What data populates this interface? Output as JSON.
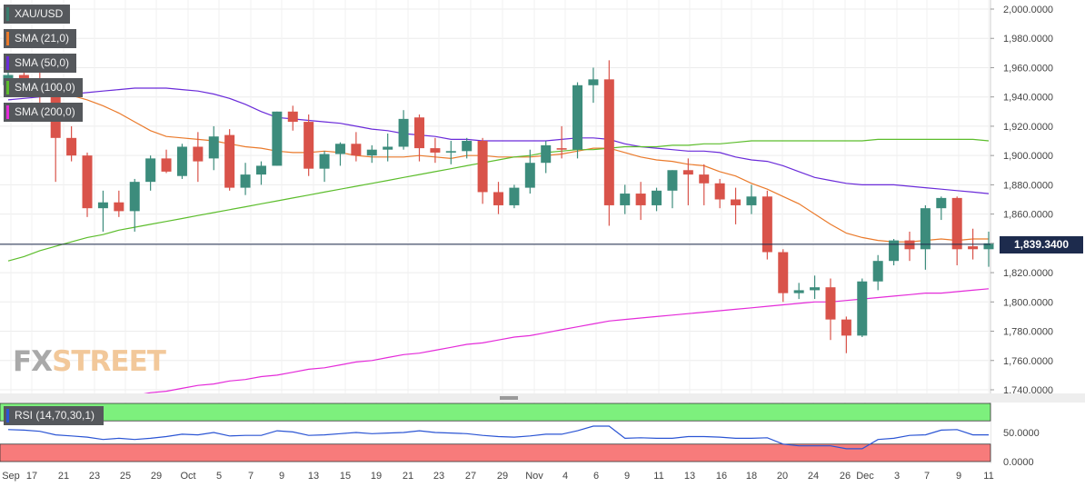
{
  "chart_data": [
    {
      "type": "candlestick",
      "symbol": "XAU/USD",
      "last_price_label": "1,839.3400",
      "last_price": 1839.34,
      "ylim": [
        1735,
        2005
      ],
      "y_ticks": [
        2000,
        1980,
        1960,
        1940,
        1920,
        1900,
        1880,
        1860,
        1840,
        1820,
        1800,
        1780,
        1760,
        1740
      ],
      "y_tick_labels": [
        "2,000.0000",
        "1,980.0000",
        "1,960.0000",
        "1,940.0000",
        "1,920.0000",
        "1,900.0000",
        "1,880.0000",
        "1,860.0000",
        "1,840.0000",
        "1,820.0000",
        "1,800.0000",
        "1,780.0000",
        "1,760.0000",
        "1,740.0000"
      ],
      "x_tick_labels": [
        "Sep",
        "17",
        "21",
        "23",
        "25",
        "29",
        "Oct",
        "5",
        "7",
        "9",
        "13",
        "15",
        "19",
        "21",
        "23",
        "27",
        "29",
        "Nov",
        "4",
        "6",
        "9",
        "11",
        "13",
        "16",
        "18",
        "20",
        "24",
        "26",
        "Dec",
        "3",
        "7",
        "9",
        "11"
      ],
      "grid": true,
      "legend": [
        "XAU/USD",
        "SMA (21,0)",
        "SMA (50,0)",
        "SMA (100,0)",
        "SMA (200,0)"
      ],
      "legend_colors": [
        "#3a7d6e",
        "#ea7a2b",
        "#6a2bd9",
        "#5cbd2c",
        "#e42bd9"
      ],
      "up_color": "#3c8c7c",
      "down_color": "#d9534a",
      "candles": [
        {
          "o": 1948,
          "h": 1960,
          "l": 1940,
          "c": 1955
        },
        {
          "o": 1955,
          "h": 1962,
          "l": 1942,
          "c": 1945
        },
        {
          "o": 1948,
          "h": 1958,
          "l": 1935,
          "c": 1942
        },
        {
          "o": 1940,
          "h": 1946,
          "l": 1882,
          "c": 1912
        },
        {
          "o": 1912,
          "h": 1920,
          "l": 1896,
          "c": 1900
        },
        {
          "o": 1900,
          "h": 1902,
          "l": 1858,
          "c": 1864
        },
        {
          "o": 1864,
          "h": 1876,
          "l": 1848,
          "c": 1868
        },
        {
          "o": 1868,
          "h": 1876,
          "l": 1858,
          "c": 1862
        },
        {
          "o": 1862,
          "h": 1884,
          "l": 1848,
          "c": 1882
        },
        {
          "o": 1882,
          "h": 1900,
          "l": 1876,
          "c": 1898
        },
        {
          "o": 1898,
          "h": 1904,
          "l": 1888,
          "c": 1889
        },
        {
          "o": 1886,
          "h": 1908,
          "l": 1884,
          "c": 1906
        },
        {
          "o": 1906,
          "h": 1916,
          "l": 1882,
          "c": 1896
        },
        {
          "o": 1898,
          "h": 1920,
          "l": 1890,
          "c": 1913
        },
        {
          "o": 1914,
          "h": 1918,
          "l": 1876,
          "c": 1878
        },
        {
          "o": 1878,
          "h": 1895,
          "l": 1873,
          "c": 1887
        },
        {
          "o": 1887,
          "h": 1896,
          "l": 1880,
          "c": 1893
        },
        {
          "o": 1893,
          "h": 1930,
          "l": 1893,
          "c": 1930
        },
        {
          "o": 1930,
          "h": 1934,
          "l": 1917,
          "c": 1923
        },
        {
          "o": 1923,
          "h": 1928,
          "l": 1886,
          "c": 1891
        },
        {
          "o": 1891,
          "h": 1903,
          "l": 1882,
          "c": 1901
        },
        {
          "o": 1901,
          "h": 1909,
          "l": 1893,
          "c": 1908
        },
        {
          "o": 1908,
          "h": 1916,
          "l": 1896,
          "c": 1900
        },
        {
          "o": 1900,
          "h": 1907,
          "l": 1895,
          "c": 1904
        },
        {
          "o": 1904,
          "h": 1915,
          "l": 1896,
          "c": 1906
        },
        {
          "o": 1906,
          "h": 1931,
          "l": 1904,
          "c": 1925
        },
        {
          "o": 1926,
          "h": 1928,
          "l": 1896,
          "c": 1905
        },
        {
          "o": 1905,
          "h": 1912,
          "l": 1895,
          "c": 1902
        },
        {
          "o": 1902,
          "h": 1910,
          "l": 1894,
          "c": 1903
        },
        {
          "o": 1903,
          "h": 1912,
          "l": 1898,
          "c": 1910
        },
        {
          "o": 1910,
          "h": 1912,
          "l": 1867,
          "c": 1875
        },
        {
          "o": 1875,
          "h": 1882,
          "l": 1860,
          "c": 1866
        },
        {
          "o": 1866,
          "h": 1880,
          "l": 1864,
          "c": 1878
        },
        {
          "o": 1878,
          "h": 1904,
          "l": 1874,
          "c": 1895
        },
        {
          "o": 1895,
          "h": 1910,
          "l": 1888,
          "c": 1907
        },
        {
          "o": 1905,
          "h": 1920,
          "l": 1898,
          "c": 1904
        },
        {
          "o": 1904,
          "h": 1950,
          "l": 1898,
          "c": 1948
        },
        {
          "o": 1948,
          "h": 1960,
          "l": 1936,
          "c": 1952
        },
        {
          "o": 1952,
          "h": 1965,
          "l": 1852,
          "c": 1866
        },
        {
          "o": 1866,
          "h": 1880,
          "l": 1860,
          "c": 1874
        },
        {
          "o": 1874,
          "h": 1882,
          "l": 1856,
          "c": 1866
        },
        {
          "o": 1866,
          "h": 1878,
          "l": 1862,
          "c": 1876
        },
        {
          "o": 1876,
          "h": 1890,
          "l": 1864,
          "c": 1890
        },
        {
          "o": 1890,
          "h": 1898,
          "l": 1866,
          "c": 1887
        },
        {
          "o": 1887,
          "h": 1894,
          "l": 1866,
          "c": 1881
        },
        {
          "o": 1881,
          "h": 1884,
          "l": 1864,
          "c": 1870
        },
        {
          "o": 1870,
          "h": 1878,
          "l": 1853,
          "c": 1866
        },
        {
          "o": 1866,
          "h": 1880,
          "l": 1860,
          "c": 1872
        },
        {
          "o": 1872,
          "h": 1876,
          "l": 1829,
          "c": 1834
        },
        {
          "o": 1834,
          "h": 1836,
          "l": 1800,
          "c": 1806
        },
        {
          "o": 1806,
          "h": 1813,
          "l": 1802,
          "c": 1808
        },
        {
          "o": 1808,
          "h": 1818,
          "l": 1802,
          "c": 1810
        },
        {
          "o": 1810,
          "h": 1816,
          "l": 1774,
          "c": 1788
        },
        {
          "o": 1788,
          "h": 1790,
          "l": 1765,
          "c": 1777
        },
        {
          "o": 1777,
          "h": 1816,
          "l": 1776,
          "c": 1814
        },
        {
          "o": 1814,
          "h": 1832,
          "l": 1808,
          "c": 1828
        },
        {
          "o": 1828,
          "h": 1843,
          "l": 1825,
          "c": 1842
        },
        {
          "o": 1842,
          "h": 1848,
          "l": 1828,
          "c": 1836
        },
        {
          "o": 1836,
          "h": 1866,
          "l": 1822,
          "c": 1864
        },
        {
          "o": 1864,
          "h": 1872,
          "l": 1856,
          "c": 1871
        },
        {
          "o": 1871,
          "h": 1872,
          "l": 1825,
          "c": 1836
        },
        {
          "o": 1838,
          "h": 1850,
          "l": 1829,
          "c": 1836
        },
        {
          "o": 1836,
          "h": 1848,
          "l": 1824,
          "c": 1840
        }
      ],
      "sma": [
        {
          "name": "SMA (21,0)",
          "color": "#ea7a2b",
          "values": [
            1950,
            1950,
            1948,
            1946,
            1941,
            1938,
            1934,
            1929,
            1923,
            1917,
            1913,
            1912,
            1911,
            1910,
            1908,
            1906,
            1905,
            1903,
            1902,
            1902,
            1903,
            1902,
            1900,
            1899,
            1899,
            1899,
            1900,
            1899,
            1898,
            1900,
            1900,
            1899,
            1899,
            1899,
            1900,
            1901,
            1903,
            1905,
            1905,
            1902,
            1899,
            1897,
            1896,
            1894,
            1893,
            1889,
            1886,
            1881,
            1877,
            1872,
            1867,
            1860,
            1853,
            1847,
            1844,
            1842,
            1841,
            1841,
            1842,
            1843,
            1842,
            1843,
            1843
          ]
        },
        {
          "name": "SMA (50,0)",
          "color": "#6a2bd9",
          "values": [
            1938,
            1939,
            1940,
            1941,
            1942,
            1943,
            1944,
            1945,
            1946,
            1946,
            1946,
            1945,
            1944,
            1942,
            1939,
            1935,
            1930,
            1926,
            1925,
            1924,
            1923,
            1922,
            1920,
            1918,
            1917,
            1915,
            1914,
            1913,
            1911,
            1911,
            1910,
            1910,
            1910,
            1910,
            1910,
            1911,
            1912,
            1912,
            1911,
            1908,
            1906,
            1905,
            1904,
            1903,
            1903,
            1902,
            1899,
            1897,
            1896,
            1893,
            1889,
            1885,
            1883,
            1881,
            1880,
            1880,
            1880,
            1879,
            1878,
            1877,
            1876,
            1875,
            1874
          ]
        },
        {
          "name": "SMA (100,0)",
          "color": "#5cbd2c",
          "values": [
            1828,
            1831,
            1835,
            1838,
            1841,
            1844,
            1846,
            1849,
            1851,
            1853,
            1855,
            1857,
            1859,
            1861,
            1863,
            1865,
            1867,
            1869,
            1871,
            1873,
            1875,
            1877,
            1879,
            1881,
            1883,
            1885,
            1887,
            1889,
            1891,
            1893,
            1895,
            1897,
            1899,
            1900,
            1902,
            1903,
            1904,
            1904,
            1905,
            1906,
            1906,
            1906,
            1907,
            1907,
            1908,
            1908,
            1909,
            1910,
            1910,
            1910,
            1910,
            1910,
            1910,
            1910,
            1910,
            1911,
            1911,
            1911,
            1911,
            1911,
            1911,
            1911,
            1910
          ]
        },
        {
          "name": "SMA (200,0)",
          "color": "#e42bd9",
          "values": [
            null,
            null,
            null,
            null,
            null,
            null,
            null,
            null,
            1736,
            1738,
            1739,
            1741,
            1743,
            1744,
            1746,
            1747,
            1749,
            1750,
            1752,
            1754,
            1755,
            1757,
            1759,
            1760,
            1762,
            1764,
            1765,
            1767,
            1769,
            1771,
            1772,
            1774,
            1776,
            1777,
            1779,
            1781,
            1783,
            1785,
            1787,
            1788,
            1789,
            1790,
            1791,
            1792,
            1793,
            1794,
            1795,
            1796,
            1797,
            1798,
            1799,
            1800,
            1800,
            1801,
            1802,
            1803,
            1804,
            1805,
            1806,
            1806,
            1807,
            1808,
            1809
          ]
        }
      ]
    },
    {
      "type": "line",
      "indicator": "RSI (14,70,30,1)",
      "ylim": [
        0,
        100
      ],
      "y_ticks": [
        50,
        0
      ],
      "y_tick_labels": [
        "50.0000",
        "0.0000"
      ],
      "overbought": 70,
      "oversold": 30,
      "color": "#2b55d4",
      "values": [
        55,
        54,
        52,
        46,
        44,
        42,
        38,
        40,
        38,
        40,
        43,
        47,
        46,
        50,
        44,
        45,
        45,
        53,
        51,
        45,
        46,
        48,
        50,
        48,
        49,
        50,
        53,
        50,
        49,
        48,
        45,
        43,
        42,
        44,
        47,
        47,
        53,
        61,
        61,
        40,
        41,
        40,
        40,
        43,
        43,
        42,
        40,
        40,
        41,
        30,
        27,
        27,
        27,
        22,
        22,
        38,
        40,
        45,
        46,
        54,
        55,
        46,
        46
      ]
    }
  ]
}
